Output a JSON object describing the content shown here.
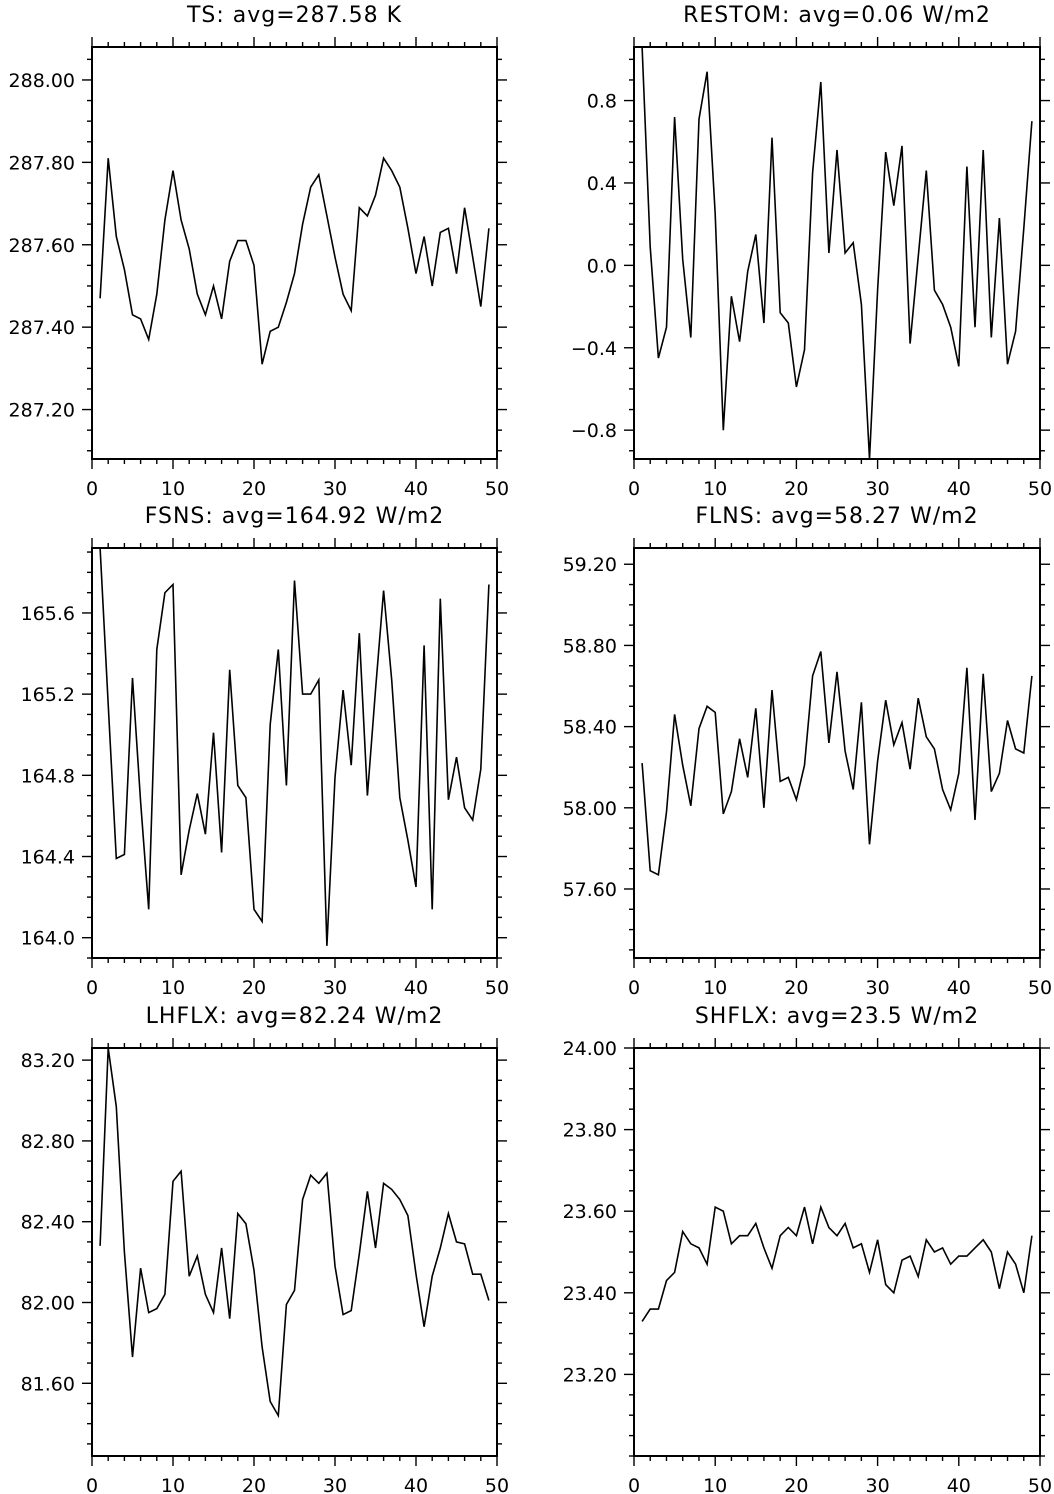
{
  "chart_data": [
    {
      "type": "line",
      "title": "TS: avg=287.58 K",
      "xlim": [
        0,
        50
      ],
      "ylim": [
        287.08,
        288.08
      ],
      "xticks": [
        0,
        10,
        20,
        30,
        40,
        50
      ],
      "xtick_labels": [
        "0",
        "10",
        "20",
        "30",
        "40",
        "50"
      ],
      "yticks": [
        287.2,
        287.4,
        287.6,
        287.8,
        288.0
      ],
      "ytick_labels": [
        "287.20",
        "287.40",
        "287.60",
        "287.80",
        "288.00"
      ],
      "grid": false,
      "x": [
        1,
        2,
        3,
        4,
        5,
        6,
        7,
        8,
        9,
        10,
        11,
        12,
        13,
        14,
        15,
        16,
        17,
        18,
        19,
        20,
        21,
        22,
        23,
        24,
        25,
        26,
        27,
        28,
        29,
        30,
        31,
        32,
        33,
        34,
        35,
        36,
        37,
        38,
        39,
        40,
        41,
        42,
        43,
        44,
        45,
        46,
        47,
        48,
        49
      ],
      "y": [
        287.47,
        287.81,
        287.62,
        287.54,
        287.43,
        287.42,
        287.37,
        287.48,
        287.66,
        287.78,
        287.66,
        287.59,
        287.48,
        287.43,
        287.5,
        287.42,
        287.56,
        287.61,
        287.61,
        287.55,
        287.31,
        287.39,
        287.4,
        287.46,
        287.53,
        287.65,
        287.74,
        287.77,
        287.67,
        287.57,
        287.48,
        287.44,
        287.69,
        287.67,
        287.72,
        287.81,
        287.78,
        287.74,
        287.64,
        287.53,
        287.62,
        287.5,
        287.63,
        287.64,
        287.53,
        287.69,
        287.57,
        287.45,
        287.64
      ]
    },
    {
      "type": "line",
      "title": "RESTOM: avg=0.06 W/m2",
      "xlim": [
        0,
        50
      ],
      "ylim": [
        -0.94,
        1.06
      ],
      "xticks": [
        0,
        10,
        20,
        30,
        40,
        50
      ],
      "xtick_labels": [
        "0",
        "10",
        "20",
        "30",
        "40",
        "50"
      ],
      "yticks": [
        -0.8,
        -0.4,
        0.0,
        0.4,
        0.8
      ],
      "ytick_labels": [
        "−0.8",
        "−0.4",
        "0.0",
        "0.4",
        "0.8"
      ],
      "grid": false,
      "x": [
        1,
        2,
        3,
        4,
        5,
        6,
        7,
        8,
        9,
        10,
        11,
        12,
        13,
        14,
        15,
        16,
        17,
        18,
        19,
        20,
        21,
        22,
        23,
        24,
        25,
        26,
        27,
        28,
        29,
        30,
        31,
        32,
        33,
        34,
        35,
        36,
        37,
        38,
        39,
        40,
        41,
        42,
        43,
        44,
        45,
        46,
        47,
        48,
        49
      ],
      "y": [
        1.06,
        0.09,
        -0.45,
        -0.3,
        0.72,
        0.03,
        -0.35,
        0.71,
        0.94,
        0.25,
        -0.8,
        -0.15,
        -0.37,
        -0.03,
        0.15,
        -0.28,
        0.62,
        -0.23,
        -0.28,
        -0.59,
        -0.41,
        0.45,
        0.89,
        0.06,
        0.56,
        0.06,
        0.11,
        -0.19,
        -0.94,
        -0.12,
        0.55,
        0.29,
        0.58,
        -0.38,
        0.04,
        0.46,
        -0.12,
        -0.19,
        -0.3,
        -0.49,
        0.48,
        -0.3,
        0.56,
        -0.35,
        0.23,
        -0.48,
        -0.32,
        0.18,
        0.7
      ]
    },
    {
      "type": "line",
      "title": "FSNS: avg=164.92 W/m2",
      "xlim": [
        0,
        50
      ],
      "ylim": [
        163.9,
        165.92
      ],
      "xticks": [
        0,
        10,
        20,
        30,
        40,
        50
      ],
      "xtick_labels": [
        "0",
        "10",
        "20",
        "30",
        "40",
        "50"
      ],
      "yticks": [
        164.0,
        164.4,
        164.8,
        165.2,
        165.6
      ],
      "ytick_labels": [
        "164.0",
        "164.4",
        "164.8",
        "165.2",
        "165.6"
      ],
      "grid": false,
      "x": [
        1,
        2,
        3,
        4,
        5,
        6,
        7,
        8,
        9,
        10,
        11,
        12,
        13,
        14,
        15,
        16,
        17,
        18,
        19,
        20,
        21,
        22,
        23,
        24,
        25,
        26,
        27,
        28,
        29,
        30,
        31,
        32,
        33,
        34,
        35,
        36,
        37,
        38,
        39,
        40,
        41,
        42,
        43,
        44,
        45,
        46,
        47,
        48,
        49
      ],
      "y": [
        165.92,
        165.15,
        164.39,
        164.41,
        165.28,
        164.67,
        164.14,
        165.42,
        165.7,
        165.74,
        164.31,
        164.53,
        164.71,
        164.51,
        165.01,
        164.42,
        165.32,
        164.75,
        164.69,
        164.14,
        164.08,
        165.05,
        165.42,
        164.75,
        165.76,
        165.2,
        165.2,
        165.27,
        163.96,
        164.79,
        165.22,
        164.85,
        165.5,
        164.7,
        165.22,
        165.71,
        165.27,
        164.69,
        164.48,
        164.25,
        165.44,
        164.14,
        165.67,
        164.68,
        164.89,
        164.64,
        164.58,
        164.83,
        165.74
      ]
    },
    {
      "type": "line",
      "title": "FLNS: avg=58.27 W/m2",
      "xlim": [
        0,
        50
      ],
      "ylim": [
        57.26,
        59.28
      ],
      "xticks": [
        0,
        10,
        20,
        30,
        40,
        50
      ],
      "xtick_labels": [
        "0",
        "10",
        "20",
        "30",
        "40",
        "50"
      ],
      "yticks": [
        57.6,
        58.0,
        58.4,
        58.8,
        59.2
      ],
      "ytick_labels": [
        "57.60",
        "58.00",
        "58.40",
        "58.80",
        "59.20"
      ],
      "grid": false,
      "x": [
        1,
        2,
        3,
        4,
        5,
        6,
        7,
        8,
        9,
        10,
        11,
        12,
        13,
        14,
        15,
        16,
        17,
        18,
        19,
        20,
        21,
        22,
        23,
        24,
        25,
        26,
        27,
        28,
        29,
        30,
        31,
        32,
        33,
        34,
        35,
        36,
        37,
        38,
        39,
        40,
        41,
        42,
        43,
        44,
        45,
        46,
        47,
        48,
        49
      ],
      "y": [
        58.22,
        57.69,
        57.67,
        57.98,
        58.46,
        58.21,
        58.01,
        58.39,
        58.5,
        58.47,
        57.97,
        58.08,
        58.34,
        58.15,
        58.49,
        58.0,
        58.58,
        58.13,
        58.15,
        58.04,
        58.21,
        58.65,
        58.77,
        58.32,
        58.67,
        58.28,
        58.09,
        58.52,
        57.82,
        58.23,
        58.53,
        58.31,
        58.42,
        58.19,
        58.54,
        58.35,
        58.29,
        58.09,
        57.99,
        58.17,
        58.69,
        57.94,
        58.66,
        58.08,
        58.17,
        58.43,
        58.29,
        58.27,
        58.65
      ]
    },
    {
      "type": "line",
      "title": "LHFLX: avg=82.24 W/m2",
      "xlim": [
        0,
        50
      ],
      "ylim": [
        81.24,
        83.26
      ],
      "xticks": [
        0,
        10,
        20,
        30,
        40,
        50
      ],
      "xtick_labels": [
        "0",
        "10",
        "20",
        "30",
        "40",
        "50"
      ],
      "yticks": [
        81.6,
        82.0,
        82.4,
        82.8,
        83.2
      ],
      "ytick_labels": [
        "81.60",
        "82.00",
        "82.40",
        "82.80",
        "83.20"
      ],
      "grid": false,
      "x": [
        1,
        2,
        3,
        4,
        5,
        6,
        7,
        8,
        9,
        10,
        11,
        12,
        13,
        14,
        15,
        16,
        17,
        18,
        19,
        20,
        21,
        22,
        23,
        24,
        25,
        26,
        27,
        28,
        29,
        30,
        31,
        32,
        33,
        34,
        35,
        36,
        37,
        38,
        39,
        40,
        41,
        42,
        43,
        44,
        45,
        46,
        47,
        48,
        49
      ],
      "y": [
        82.28,
        83.26,
        82.97,
        82.25,
        81.73,
        82.17,
        81.95,
        81.97,
        82.04,
        82.6,
        82.65,
        82.13,
        82.23,
        82.04,
        81.95,
        82.27,
        81.92,
        82.44,
        82.39,
        82.16,
        81.78,
        81.51,
        81.44,
        81.99,
        82.06,
        82.51,
        82.63,
        82.59,
        82.64,
        82.18,
        81.94,
        81.96,
        82.24,
        82.55,
        82.27,
        82.59,
        82.56,
        82.51,
        82.43,
        82.14,
        81.88,
        82.13,
        82.27,
        82.44,
        82.3,
        82.29,
        82.14,
        82.14,
        82.01
      ]
    },
    {
      "type": "line",
      "title": "SHFLX: avg=23.5 W/m2",
      "xlim": [
        0,
        50
      ],
      "ylim": [
        23.0,
        24.0
      ],
      "xticks": [
        0,
        10,
        20,
        30,
        40,
        50
      ],
      "xtick_labels": [
        "0",
        "10",
        "20",
        "30",
        "40",
        "50"
      ],
      "yticks": [
        23.2,
        23.4,
        23.6,
        23.8,
        24.0
      ],
      "ytick_labels": [
        "23.20",
        "23.40",
        "23.60",
        "23.80",
        "24.00"
      ],
      "grid": false,
      "x": [
        1,
        2,
        3,
        4,
        5,
        6,
        7,
        8,
        9,
        10,
        11,
        12,
        13,
        14,
        15,
        16,
        17,
        18,
        19,
        20,
        21,
        22,
        23,
        24,
        25,
        26,
        27,
        28,
        29,
        30,
        31,
        32,
        33,
        34,
        35,
        36,
        37,
        38,
        39,
        40,
        41,
        42,
        43,
        44,
        45,
        46,
        47,
        48,
        49
      ],
      "y": [
        23.33,
        23.36,
        23.36,
        23.43,
        23.45,
        23.55,
        23.52,
        23.51,
        23.47,
        23.61,
        23.6,
        23.52,
        23.54,
        23.54,
        23.57,
        23.51,
        23.46,
        23.54,
        23.56,
        23.54,
        23.61,
        23.52,
        23.61,
        23.56,
        23.54,
        23.57,
        23.51,
        23.52,
        23.45,
        23.53,
        23.42,
        23.4,
        23.48,
        23.49,
        23.44,
        23.53,
        23.5,
        23.51,
        23.47,
        23.49,
        23.49,
        23.51,
        23.53,
        23.5,
        23.41,
        23.5,
        23.47,
        23.4,
        23.54
      ]
    }
  ]
}
